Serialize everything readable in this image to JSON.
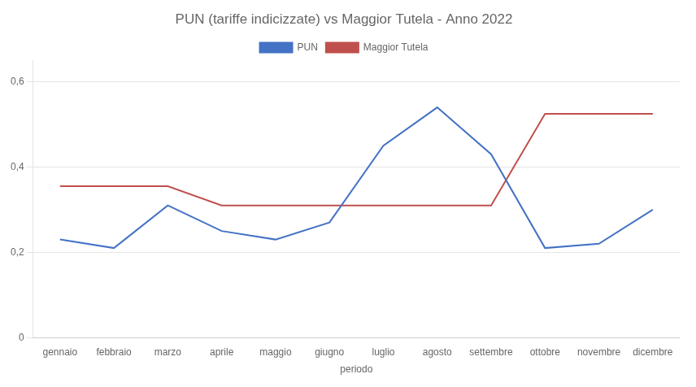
{
  "chart_data": {
    "type": "line",
    "title": "PUN (tariffe indicizzate) vs Maggior Tutela - Anno 2022",
    "xlabel": "periodo",
    "categories": [
      "gennaio",
      "febbraio",
      "marzo",
      "aprile",
      "maggio",
      "giugno",
      "luglio",
      "agosto",
      "settembre",
      "ottobre",
      "novembre",
      "dicembre"
    ],
    "series": [
      {
        "name": "PUN",
        "color": "#4472C4",
        "values": [
          0.23,
          0.21,
          0.31,
          0.25,
          0.23,
          0.27,
          0.45,
          0.54,
          0.43,
          0.21,
          0.22,
          0.3
        ]
      },
      {
        "name": "Maggior Tutela",
        "color": "#C0504D",
        "values": [
          0.355,
          0.355,
          0.355,
          0.31,
          0.31,
          0.31,
          0.31,
          0.31,
          0.31,
          0.525,
          0.525,
          0.525
        ]
      }
    ],
    "ylim": [
      0,
      0.65
    ],
    "yticks": [
      0,
      {
        "value": 0.2,
        "label": "0,2"
      },
      {
        "value": 0.4,
        "label": "0,4"
      },
      {
        "value": 0.6,
        "label": "0,6"
      }
    ],
    "grid": true,
    "legend": "top"
  }
}
